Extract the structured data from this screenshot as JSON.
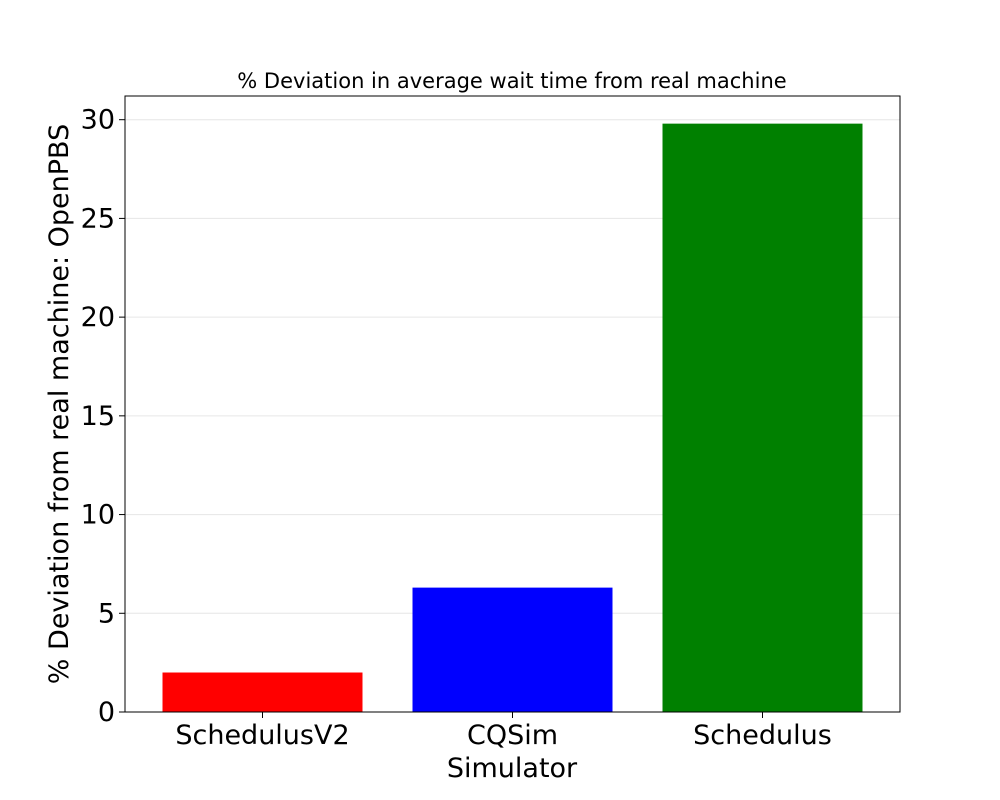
{
  "chart_data": {
    "type": "bar",
    "title": "% Deviation in average wait time from real machine",
    "xlabel": "Simulator",
    "ylabel": "% Deviation from real machine: OpenPBS",
    "categories": [
      "SchedulusV2",
      "CQSim",
      "Schedulus"
    ],
    "values": [
      2.0,
      6.3,
      29.8
    ],
    "colors": [
      "#ff0000",
      "#0000ff",
      "#008000"
    ],
    "ylim": [
      0,
      31.2
    ],
    "yticks": [
      0,
      5,
      10,
      15,
      20,
      25,
      30
    ],
    "grid": "horizontal",
    "legend": "none"
  }
}
